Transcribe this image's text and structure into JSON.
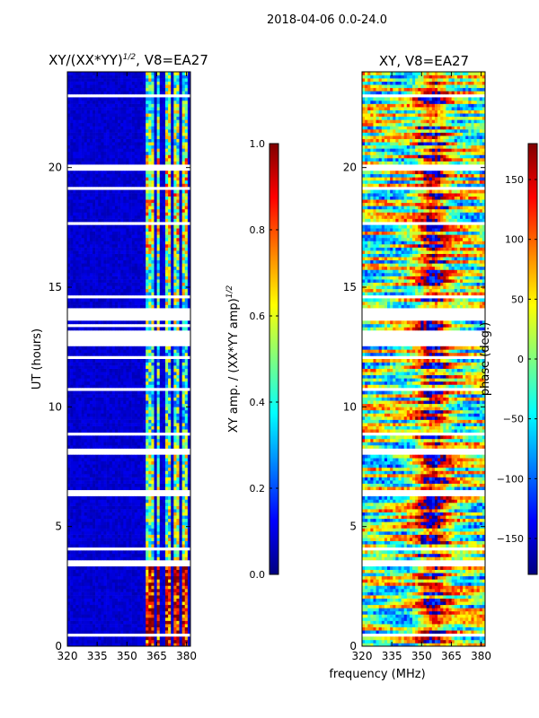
{
  "suptitle": "2018-04-06 0.0-24.0",
  "colors": {
    "jet": [
      "#00007f",
      "#0000ff",
      "#007fff",
      "#00ffff",
      "#7fff7f",
      "#ffff00",
      "#ff7f00",
      "#ff0000",
      "#7f0000"
    ],
    "background": "#ffffff",
    "axis": "#000000"
  },
  "chart_data": [
    {
      "type": "heatmap",
      "title_main": "XY/(XX*YY)",
      "title_exponent": "1/2",
      "title_suffix": ", V8=EA27",
      "xlabel": "",
      "ylabel": "UT (hours)",
      "xlim": [
        320,
        382
      ],
      "ylim": [
        0,
        24
      ],
      "xticks": [
        "320",
        "335",
        "350",
        "365",
        "380"
      ],
      "xtick_values": [
        320,
        335,
        350,
        365,
        380
      ],
      "yticks": [
        "0",
        "5",
        "10",
        "15",
        "20"
      ],
      "ytick_values": [
        0,
        5,
        10,
        15,
        20
      ],
      "colorbar": {
        "label_main": "XY amp. / (XX*YY amp)",
        "label_exponent": "1/2",
        "vmin": 0.0,
        "vmax": 1.0,
        "ticks": [
          "0.0",
          "0.2",
          "0.4",
          "0.6",
          "0.8",
          "1.0"
        ],
        "tick_values": [
          0.0,
          0.2,
          0.4,
          0.6,
          0.8,
          1.0
        ]
      },
      "bands_mhz": [
        [
          360,
          363.5
        ],
        [
          365,
          367
        ],
        [
          369,
          372
        ],
        [
          373.5,
          376
        ],
        [
          377.5,
          380.5
        ]
      ],
      "band_level_by_hour": [
        {
          "hours": [
            0,
            3.3
          ],
          "level": 0.88
        },
        {
          "hours": [
            3.3,
            8.5
          ],
          "level": 0.5
        },
        {
          "hours": [
            8.5,
            12.5
          ],
          "level": 0.42
        },
        {
          "hours": [
            12.5,
            16.5
          ],
          "level": 0.5
        },
        {
          "hours": [
            16.5,
            20.5
          ],
          "level": 0.62
        },
        {
          "hours": [
            20.5,
            24
          ],
          "level": 0.48
        }
      ],
      "background_level": 0.05,
      "flagged_hours": [
        [
          0.35,
          0.5
        ],
        [
          1.3,
          1.35
        ],
        [
          1.75,
          1.8
        ],
        [
          3.35,
          3.6
        ],
        [
          4.05,
          4.1
        ],
        [
          5.3,
          5.35
        ],
        [
          5.95,
          6.0
        ],
        [
          6.2,
          6.6
        ],
        [
          7.4,
          7.45
        ],
        [
          8.05,
          8.25
        ],
        [
          8.8,
          9.0
        ],
        [
          10.7,
          10.75
        ],
        [
          11.6,
          11.65
        ],
        [
          12.0,
          12.1
        ],
        [
          12.6,
          13.2
        ],
        [
          13.35,
          13.45
        ],
        [
          13.6,
          14.2
        ],
        [
          14.5,
          14.7
        ],
        [
          16.8,
          16.85
        ],
        [
          17.6,
          17.8
        ],
        [
          19.1,
          19.15
        ],
        [
          19.9,
          20.1
        ],
        [
          20.75,
          20.8
        ],
        [
          21.3,
          21.35
        ],
        [
          22.4,
          22.45
        ],
        [
          23.0,
          23.1
        ],
        [
          23.3,
          23.35
        ]
      ]
    },
    {
      "type": "heatmap",
      "title_main": "XY, V8=EA27",
      "xlabel": "frequency (MHz)",
      "ylabel": "",
      "xlim": [
        320,
        382
      ],
      "ylim": [
        0,
        24
      ],
      "xticks": [
        "320",
        "335",
        "350",
        "365",
        "380"
      ],
      "xtick_values": [
        320,
        335,
        350,
        365,
        380
      ],
      "yticks": [
        "0",
        "5",
        "10",
        "15",
        "20"
      ],
      "ytick_values": [
        0,
        5,
        10,
        15,
        20
      ],
      "colorbar": {
        "label_main": "phase (deg.)",
        "vmin": -180,
        "vmax": 180,
        "ticks": [
          "150",
          "100",
          "50",
          "0",
          "−50",
          "−100",
          "−150"
        ],
        "tick_values": [
          150,
          100,
          50,
          0,
          -50,
          -100,
          -150
        ]
      },
      "phase_ridge_mhz": 355,
      "phase_ridge_value": 150,
      "flagged_hours": [
        [
          0.35,
          0.5
        ],
        [
          1.3,
          1.35
        ],
        [
          3.35,
          3.6
        ],
        [
          4.05,
          4.1
        ],
        [
          5.3,
          5.35
        ],
        [
          6.2,
          6.6
        ],
        [
          7.4,
          7.45
        ],
        [
          8.05,
          8.25
        ],
        [
          8.8,
          9.0
        ],
        [
          10.7,
          10.75
        ],
        [
          12.0,
          12.1
        ],
        [
          12.6,
          13.2
        ],
        [
          13.6,
          14.2
        ],
        [
          14.5,
          14.7
        ],
        [
          17.6,
          17.8
        ],
        [
          19.1,
          19.15
        ],
        [
          19.9,
          20.1
        ],
        [
          20.75,
          20.8
        ],
        [
          22.4,
          22.45
        ],
        [
          23.0,
          23.1
        ]
      ]
    }
  ]
}
